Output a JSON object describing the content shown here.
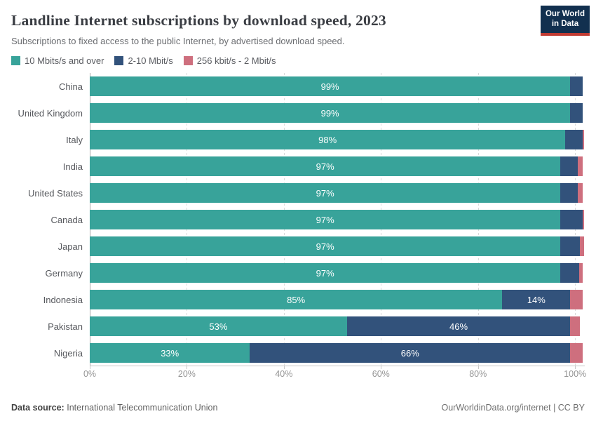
{
  "header": {
    "title": "Landline Internet subscriptions by download speed, 2023",
    "subtitle": "Subscriptions to fixed access to the public Internet, by advertised download speed.",
    "logo": {
      "line1": "Our World",
      "line2": "in Data"
    }
  },
  "chart_data": {
    "type": "bar",
    "orientation": "horizontal",
    "stacked": true,
    "unit": "%",
    "categories": [
      "China",
      "United Kingdom",
      "Italy",
      "India",
      "United States",
      "Canada",
      "Japan",
      "Germany",
      "Indonesia",
      "Pakistan",
      "Nigeria"
    ],
    "series": [
      {
        "name": "10 Mbits/s and over",
        "color": "#38a39a",
        "values": [
          99,
          99,
          98,
          97,
          97,
          97,
          97,
          97,
          85,
          53,
          33
        ],
        "bar_labels": [
          "99%",
          "99%",
          "98%",
          "97%",
          "97%",
          "97%",
          "97%",
          "97%",
          "85%",
          "53%",
          "33%"
        ]
      },
      {
        "name": "2-10 Mbit/s",
        "color": "#32527b",
        "values": [
          2.5,
          2.5,
          3.5,
          3.5,
          3.5,
          4.5,
          4,
          3.8,
          14,
          46,
          66
        ],
        "bar_labels": [
          null,
          null,
          null,
          null,
          null,
          null,
          null,
          null,
          "14%",
          "46%",
          "66%"
        ]
      },
      {
        "name": "256 kbit/s - 2 Mbit/s",
        "color": "#ce6f7e",
        "values": [
          0,
          0,
          0.4,
          1,
          1,
          0.4,
          0.8,
          0.8,
          2.5,
          2,
          2.5
        ],
        "bar_labels": [
          null,
          null,
          null,
          null,
          null,
          null,
          null,
          null,
          null,
          null,
          null
        ]
      }
    ],
    "xticks": [
      {
        "value": 0,
        "label": "0%"
      },
      {
        "value": 20,
        "label": "20%"
      },
      {
        "value": 40,
        "label": "40%"
      },
      {
        "value": 60,
        "label": "60%"
      },
      {
        "value": 80,
        "label": "80%"
      },
      {
        "value": 100,
        "label": "100%"
      }
    ],
    "xlim": [
      0,
      102
    ],
    "grid": true,
    "legend_position": "top"
  },
  "footer": {
    "source_label": "Data source:",
    "source_value": "International Telecommunication Union",
    "credit": "OurWorldinData.org/internet | CC BY"
  }
}
